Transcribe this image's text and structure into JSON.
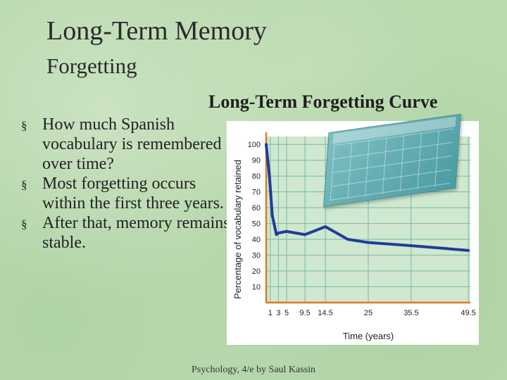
{
  "slide": {
    "title": "Long-Term Memory",
    "subtitle": "Forgetting",
    "chart_heading": "Long-Term Forgetting Curve",
    "bullet_marker": "§",
    "bullets": [
      "How much Spanish vocabulary is remembered over time?",
      "Most forgetting occurs within the first three years.",
      "After that, memory remains stable."
    ],
    "footer": "Psychology, 4/e by Saul Kassin"
  },
  "colors": {
    "plot_background": "#cfe8cf",
    "grid": "#7ab8a8",
    "axis_x": "#e07a20",
    "axis_y": "#e07a20",
    "line": "#1f3d99",
    "frame": "#ffffff"
  },
  "chart_data": {
    "type": "line",
    "title": "Long-Term Forgetting Curve",
    "xlabel": "Time (years)",
    "ylabel": "Percentage of vocabulary retained",
    "x_ticks": [
      1,
      3,
      5,
      9.5,
      14.5,
      25,
      35.5,
      49.5
    ],
    "x_tick_labels": [
      "1",
      "3",
      "5",
      "9.5",
      "14.5",
      "25",
      "35.5",
      "49.5"
    ],
    "y_ticks": [
      10,
      20,
      30,
      40,
      50,
      60,
      70,
      80,
      90,
      100
    ],
    "y_tick_labels": [
      "10",
      "20",
      "30",
      "40",
      "50",
      "60",
      "70",
      "80",
      "90",
      "100"
    ],
    "xlim": [
      0,
      50
    ],
    "ylim": [
      0,
      105
    ],
    "grid": true,
    "series": [
      {
        "values_x": [
          0,
          0.8,
          1.5,
          2.5,
          3,
          5,
          9.5,
          14.5,
          20,
          25,
          35.5,
          49.5
        ],
        "values_y": [
          100,
          80,
          55,
          43,
          44,
          45,
          43,
          48,
          40,
          38,
          36,
          33
        ]
      }
    ]
  }
}
